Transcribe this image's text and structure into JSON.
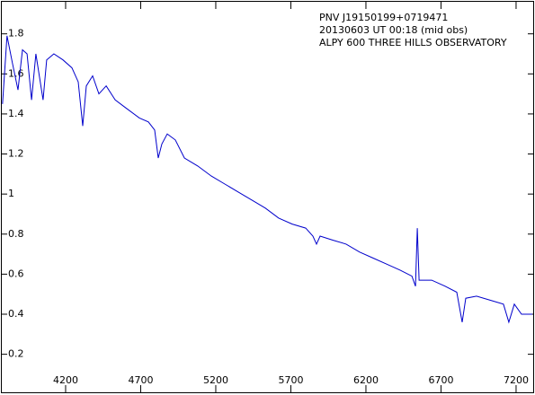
{
  "chart_data": {
    "type": "line",
    "title_lines": [
      "PNV J19150199+0719471",
      "20130603 UT 00:18  (mid obs)",
      "ALPY 600 THREE HILLS OBSERVATORY"
    ],
    "x": [
      3780,
      3810,
      3847,
      3883,
      3913,
      3943,
      3973,
      4002,
      4050,
      4074,
      4122,
      4182,
      4242,
      4284,
      4314,
      4338,
      4380,
      4422,
      4470,
      4530,
      4601,
      4691,
      4751,
      4793,
      4817,
      4841,
      4877,
      4931,
      4991,
      5080,
      5170,
      5260,
      5350,
      5440,
      5530,
      5619,
      5709,
      5799,
      5847,
      5871,
      5895,
      5979,
      6068,
      6158,
      6248,
      6338,
      6428,
      6506,
      6530,
      6542,
      6554,
      6638,
      6727,
      6805,
      6841,
      6865,
      6937,
      7027,
      7116,
      7152,
      7188,
      7236,
      7308
    ],
    "series": [
      {
        "name": "flux",
        "color": "#0000cc",
        "values": [
          1.45,
          1.79,
          1.65,
          1.52,
          1.72,
          1.7,
          1.47,
          1.7,
          1.47,
          1.67,
          1.7,
          1.67,
          1.63,
          1.56,
          1.34,
          1.54,
          1.59,
          1.5,
          1.54,
          1.47,
          1.43,
          1.38,
          1.36,
          1.32,
          1.18,
          1.25,
          1.3,
          1.27,
          1.18,
          1.14,
          1.09,
          1.05,
          1.01,
          0.97,
          0.93,
          0.88,
          0.85,
          0.83,
          0.79,
          0.75,
          0.79,
          0.77,
          0.75,
          0.71,
          0.68,
          0.65,
          0.62,
          0.59,
          0.54,
          0.83,
          0.57,
          0.57,
          0.54,
          0.51,
          0.36,
          0.48,
          0.49,
          0.47,
          0.45,
          0.36,
          0.45,
          0.4,
          0.4
        ]
      }
    ],
    "xlim": [
      3775,
      7314
    ],
    "ylim": [
      0.01,
      1.96
    ],
    "xticks": [
      4200,
      4700,
      5200,
      5700,
      6200,
      6700,
      7200
    ],
    "yticks": [
      0.2,
      0.4,
      0.6,
      0.8,
      1,
      1.2,
      1.4,
      1.6,
      1.8
    ]
  }
}
